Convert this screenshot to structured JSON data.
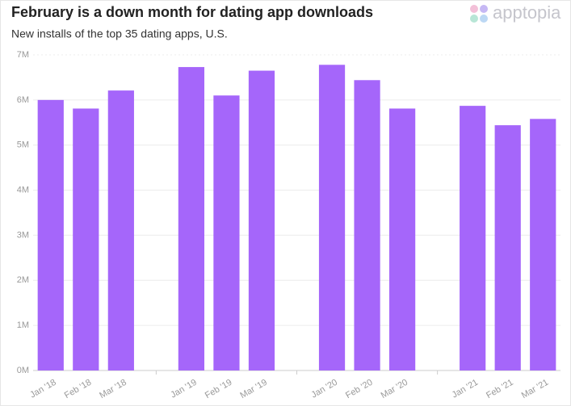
{
  "chart_data": {
    "type": "bar",
    "title": "February is a down month for dating app downloads",
    "subtitle": "New installs of the top 35 dating apps, U.S.",
    "logo": "apptopia",
    "categories": [
      "Jan '18",
      "Feb '18",
      "Mar '18",
      null,
      "Jan '19",
      "Feb '19",
      "Mar '19",
      null,
      "Jan '20",
      "Feb '20",
      "Mar '20",
      null,
      "Jan '21",
      "Feb '21",
      "Mar '21"
    ],
    "values": [
      6000000,
      5810000,
      6210000,
      null,
      6730000,
      6100000,
      6650000,
      null,
      6780000,
      6440000,
      5810000,
      null,
      5870000,
      5440000,
      5580000
    ],
    "color": "#a566fa",
    "ylim": [
      0,
      7000000
    ],
    "yticks": [
      {
        "value": 0,
        "label": "0M"
      },
      {
        "value": 1000000,
        "label": "1M"
      },
      {
        "value": 2000000,
        "label": "2M"
      },
      {
        "value": 3000000,
        "label": "3M"
      },
      {
        "value": 4000000,
        "label": "4M"
      },
      {
        "value": 5000000,
        "label": "5M"
      },
      {
        "value": 6000000,
        "label": "6M"
      },
      {
        "value": 7000000,
        "label": "7M"
      }
    ],
    "grid": true
  }
}
